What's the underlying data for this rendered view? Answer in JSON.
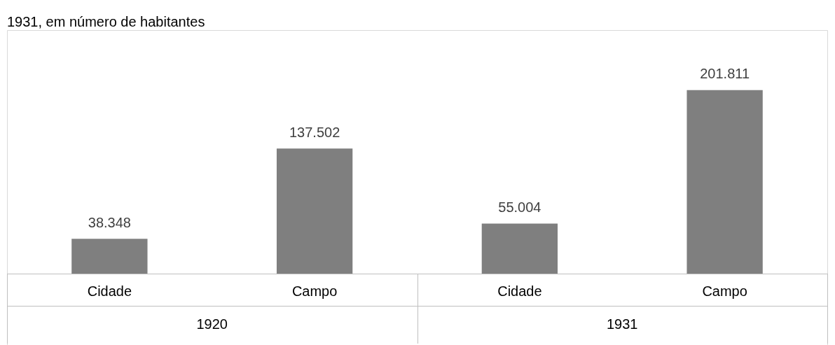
{
  "chart_data": {
    "type": "bar",
    "title": "1931, em número de habitantes",
    "categories": [
      "Cidade",
      "Campo",
      "Cidade",
      "Campo"
    ],
    "values": [
      38348,
      137502,
      55004,
      201811
    ],
    "value_labels": [
      "38.348",
      "137.502",
      "55.004",
      "201.811"
    ],
    "color": "#7f7f7f",
    "annotations": [
      "1920",
      "1931"
    ],
    "grid": false,
    "legend": false
  }
}
